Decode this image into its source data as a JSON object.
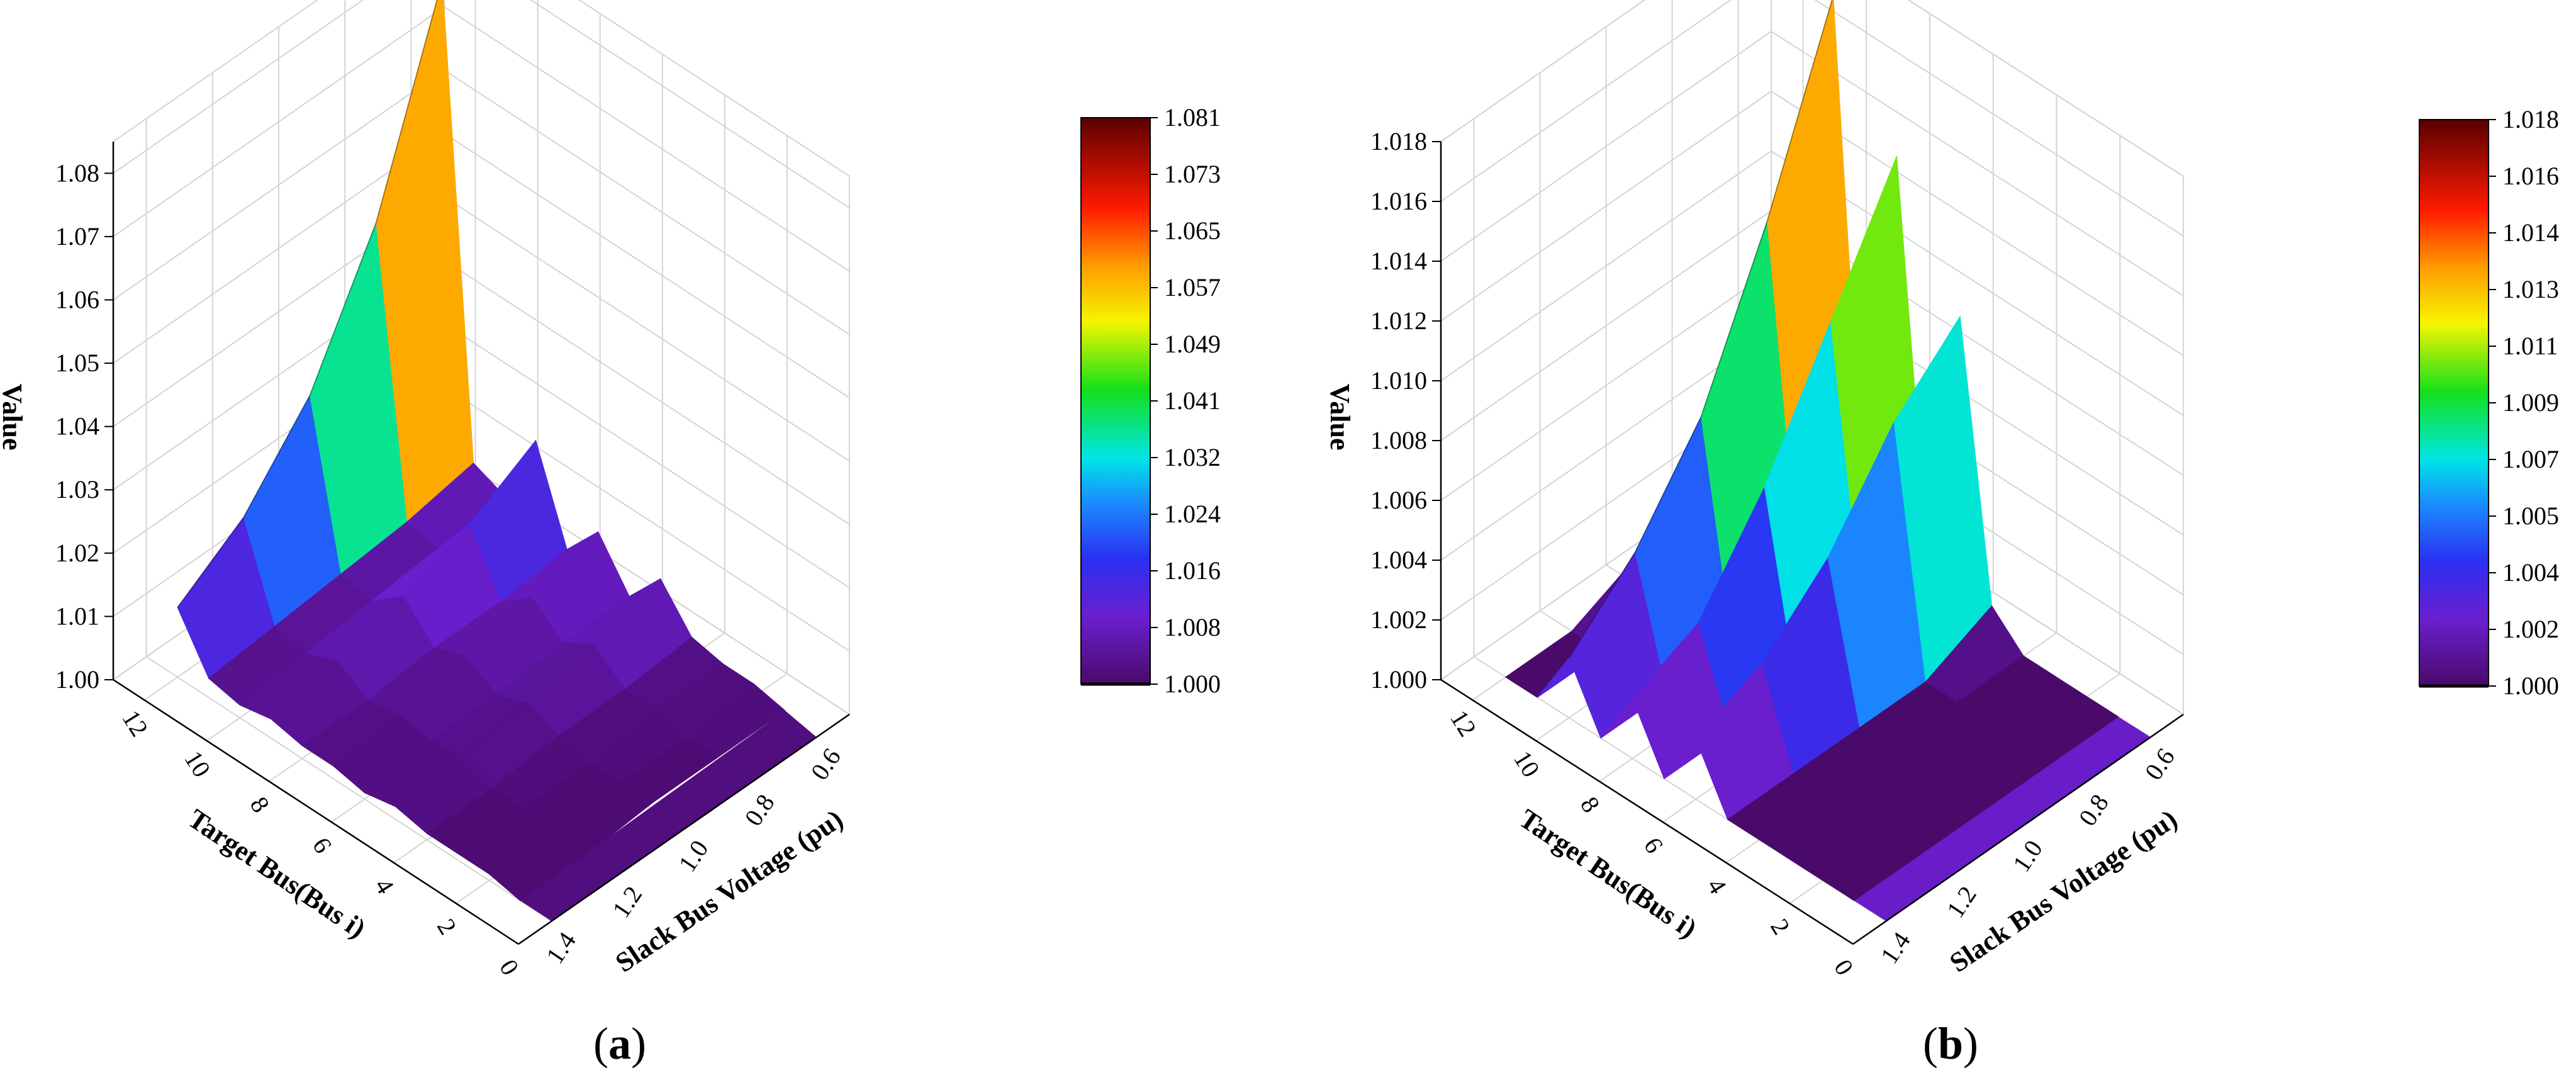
{
  "chart_data": [
    {
      "type": "surface3d",
      "panel_label": {
        "open": "(",
        "letter": "a",
        "close": ")"
      },
      "xlabel": "Target Bus(Bus i)",
      "ylabel": "Slack Bus Voltage (pu)",
      "zlabel": "Value",
      "x_ticks": [
        "0",
        "2",
        "4",
        "6",
        "8",
        "10",
        "12"
      ],
      "y_ticks": [
        "0.6",
        "0.8",
        "1.0",
        "1.2",
        "1.4"
      ],
      "z_ticks": [
        "1.00",
        "1.01",
        "1.02",
        "1.03",
        "1.04",
        "1.05",
        "1.06",
        "1.07",
        "1.08"
      ],
      "xlim": [
        0,
        13
      ],
      "ylim": [
        0.5,
        1.5
      ],
      "zlim": [
        1.0,
        1.085
      ],
      "colormap": "rainbow (purple-blue-cyan-green-yellow-red-darkred)",
      "colorbar_ticks": [
        "1.081",
        "1.073",
        "1.065",
        "1.057",
        "1.049",
        "1.041",
        "1.032",
        "1.024",
        "1.016",
        "1.008",
        "1.000"
      ],
      "colorbar_range": [
        1.0,
        1.081
      ],
      "grid": true,
      "series": [
        {
          "bus": 12,
          "v": [
            0.6,
            0.8,
            1.0,
            1.2,
            1.4
          ],
          "values": [
            1.081,
            1.05,
            1.03,
            1.018,
            1.011
          ]
        },
        {
          "bus": 11,
          "v": [
            0.6,
            0.8,
            1.0,
            1.2,
            1.4
          ],
          "values": [
            1.008,
            1.006,
            1.005,
            1.004,
            1.003
          ]
        },
        {
          "bus": 10,
          "v": [
            0.6,
            0.8,
            1.0,
            1.2,
            1.4
          ],
          "values": [
            1.006,
            1.005,
            1.004,
            1.003,
            1.002
          ]
        },
        {
          "bus": 9,
          "v": [
            0.6,
            0.8,
            1.0,
            1.2,
            1.4
          ],
          "values": [
            1.018,
            1.012,
            1.008,
            1.005,
            1.003
          ]
        },
        {
          "bus": 8,
          "v": [
            0.6,
            0.8,
            1.0,
            1.2,
            1.4
          ],
          "values": [
            1.004,
            1.003,
            1.003,
            1.002,
            1.002
          ]
        },
        {
          "bus": 7,
          "v": [
            0.6,
            0.8,
            1.0,
            1.2,
            1.4
          ],
          "values": [
            1.01,
            1.007,
            1.005,
            1.003,
            1.002
          ]
        },
        {
          "bus": 6,
          "v": [
            0.6,
            0.8,
            1.0,
            1.2,
            1.4
          ],
          "values": [
            1.003,
            1.003,
            1.002,
            1.002,
            1.001
          ]
        },
        {
          "bus": 5,
          "v": [
            0.6,
            0.8,
            1.0,
            1.2,
            1.4
          ],
          "values": [
            1.009,
            1.006,
            1.004,
            1.003,
            1.002
          ]
        },
        {
          "bus": 4,
          "v": [
            0.6,
            0.8,
            1.0,
            1.2,
            1.4
          ],
          "values": [
            1.003,
            1.002,
            1.002,
            1.001,
            1.001
          ]
        },
        {
          "bus": 3,
          "v": [
            0.6,
            0.8,
            1.0,
            1.2,
            1.4
          ],
          "values": [
            1.002,
            1.002,
            1.001,
            1.001,
            1.001
          ]
        },
        {
          "bus": 2,
          "v": [
            0.6,
            0.8,
            1.0,
            1.2,
            1.4
          ],
          "values": [
            1.002,
            1.001,
            1.001,
            1.001,
            1.001
          ]
        },
        {
          "bus": 1,
          "v": [
            0.6,
            0.8,
            1.0,
            1.2,
            1.4
          ],
          "values": [
            1.001,
            1.001,
            1.001,
            1.0,
            1.0
          ]
        }
      ]
    },
    {
      "type": "surface3d",
      "panel_label": {
        "open": "(",
        "letter": "b",
        "close": ")"
      },
      "xlabel": "Target Bus(Bus i)",
      "ylabel": "Slack Bus Voltage (pu)",
      "zlabel": "Value",
      "x_ticks": [
        "0",
        "2",
        "4",
        "6",
        "8",
        "10",
        "12"
      ],
      "y_ticks": [
        "0.6",
        "0.8",
        "1.0",
        "1.2",
        "1.4"
      ],
      "z_ticks": [
        "1.000",
        "1.002",
        "1.004",
        "1.006",
        "1.008",
        "1.010",
        "1.012",
        "1.014",
        "1.016",
        "1.018"
      ],
      "xlim": [
        0,
        13
      ],
      "ylim": [
        0.5,
        1.5
      ],
      "zlim": [
        1.0,
        1.018
      ],
      "colormap": "rainbow (purple-blue-cyan-green-yellow-red-darkred)",
      "colorbar_ticks": [
        "1.018",
        "1.016",
        "1.014",
        "1.013",
        "1.011",
        "1.009",
        "1.007",
        "1.005",
        "1.004",
        "1.002",
        "1.000"
      ],
      "colorbar_range": [
        1.0,
        1.018
      ],
      "grid": true,
      "series": [
        {
          "bus": 12,
          "v": [
            0.6,
            0.8,
            1.0,
            1.2,
            1.4
          ],
          "values": [
            1.001,
            1.001,
            1.001,
            1.0,
            1.0
          ]
        },
        {
          "bus": 11,
          "v": [
            0.6,
            0.8,
            1.0,
            1.2,
            1.4
          ],
          "values": [
            1.002,
            1.001,
            1.001,
            1.0,
            1.0
          ]
        },
        {
          "bus": 10,
          "v": [
            0.6,
            0.8,
            1.0,
            1.2,
            1.4
          ],
          "values": [
            1.018,
            1.012,
            1.007,
            1.004,
            1.002
          ]
        },
        {
          "bus": 9,
          "v": [
            0.6,
            0.8,
            1.0,
            1.2,
            1.4
          ],
          "values": [
            1.001,
            1.001,
            1.0,
            1.0,
            1.0
          ]
        },
        {
          "bus": 8,
          "v": [
            0.6,
            0.8,
            1.0,
            1.2,
            1.4
          ],
          "values": [
            1.014,
            1.01,
            1.006,
            1.003,
            1.002
          ]
        },
        {
          "bus": 7,
          "v": [
            0.6,
            0.8,
            1.0,
            1.2,
            1.4
          ],
          "values": [
            1.001,
            1.001,
            1.0,
            1.0,
            1.0
          ]
        },
        {
          "bus": 6,
          "v": [
            0.6,
            0.8,
            1.0,
            1.2,
            1.4
          ],
          "values": [
            1.01,
            1.008,
            1.005,
            1.003,
            1.002
          ]
        },
        {
          "bus": 5,
          "v": [
            0.6,
            0.8,
            1.0,
            1.2,
            1.4
          ],
          "values": [
            1.001,
            1.0,
            1.0,
            1.0,
            1.0
          ]
        },
        {
          "bus": 4,
          "v": [
            0.6,
            0.8,
            1.0,
            1.2,
            1.4
          ],
          "values": [
            1.0,
            1.0,
            1.0,
            1.0,
            1.0
          ]
        },
        {
          "bus": 3,
          "v": [
            0.6,
            0.8,
            1.0,
            1.2,
            1.4
          ],
          "values": [
            1.0,
            1.0,
            1.0,
            1.0,
            1.0
          ]
        },
        {
          "bus": 2,
          "v": [
            0.6,
            0.8,
            1.0,
            1.2,
            1.4
          ],
          "values": [
            1.0,
            1.0,
            1.0,
            1.0,
            1.0
          ]
        },
        {
          "bus": 1,
          "v": [
            0.6,
            0.8,
            1.0,
            1.2,
            1.4
          ],
          "values": [
            1.0,
            1.0,
            1.0,
            1.0,
            1.0
          ]
        }
      ]
    }
  ]
}
